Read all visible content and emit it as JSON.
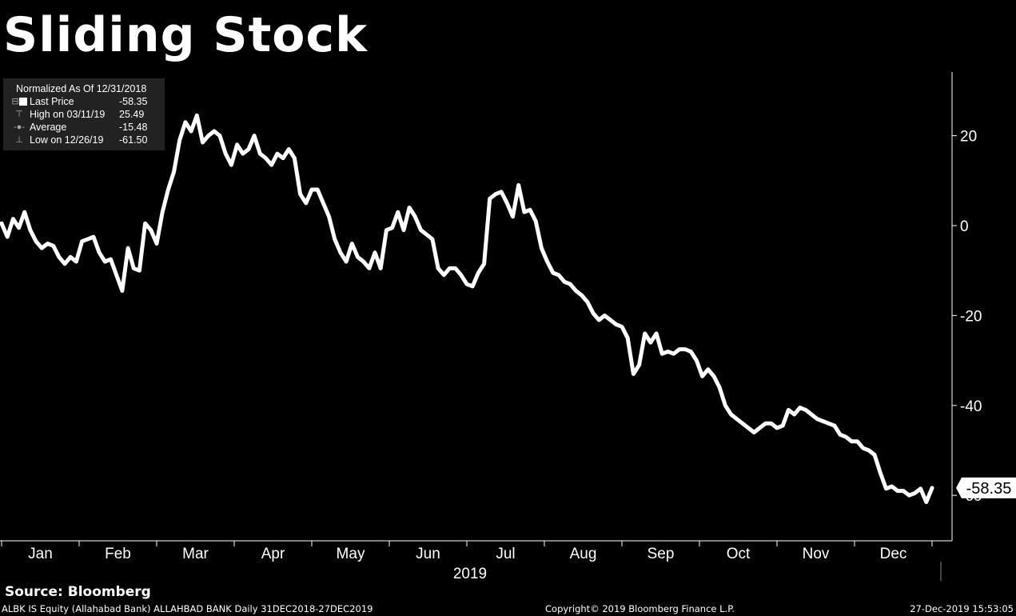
{
  "title": "Sliding Stock",
  "legend": {
    "header": "Normalized As Of 12/31/2018",
    "rows": [
      {
        "label": "Last Price",
        "value": "-58.35"
      },
      {
        "label": "High on 03/11/19",
        "value": "25.49"
      },
      {
        "label": "Average",
        "value": "-15.48"
      },
      {
        "label": "Low on 12/26/19",
        "value": "-61.50"
      }
    ]
  },
  "chart_data": {
    "type": "line",
    "title": "Sliding Stock",
    "xlabel": "2019",
    "ylabel": "",
    "x_ticks": [
      "Jan",
      "Feb",
      "Mar",
      "Apr",
      "May",
      "Jun",
      "Jul",
      "Aug",
      "Sep",
      "Oct",
      "Nov",
      "Dec"
    ],
    "y_ticks": [
      20,
      0,
      -20,
      -40,
      -60
    ],
    "ylim": [
      -70,
      34
    ],
    "last_value_label": "-58.35",
    "colors": {
      "line": "#ffffff",
      "background": "#000000"
    },
    "series": [
      {
        "values": [
          0.5,
          -2.5,
          1.5,
          -0.5,
          3,
          -1,
          -3.5,
          -5,
          -4,
          -4.5,
          -7,
          -8.5,
          -7,
          -8,
          -3.5,
          -3,
          -2.5,
          -6,
          -8,
          -7.5,
          -11,
          -14.5,
          -5,
          -9.5,
          -10,
          0.5,
          -1,
          -4,
          3,
          8,
          12,
          19,
          23,
          21,
          24.5,
          18.5,
          20,
          21,
          20,
          16,
          13.5,
          18,
          16,
          17,
          20,
          16,
          15,
          13.5,
          16,
          15,
          17,
          15,
          7,
          5,
          8,
          8,
          5,
          2,
          -3,
          -6,
          -8,
          -4,
          -7,
          -8,
          -9.5,
          -6,
          -9.5,
          -1,
          -0.5,
          3,
          -1,
          4,
          2,
          -1,
          -2,
          -3,
          -9.5,
          -11,
          -9.5,
          -9.5,
          -11,
          -13,
          -13.5,
          -10.5,
          -8.5,
          6,
          7,
          7.5,
          5,
          2,
          9,
          3,
          3.5,
          1,
          -5,
          -8,
          -10.5,
          -11,
          -12.5,
          -13,
          -14.5,
          -15.5,
          -17,
          -19.5,
          -21,
          -20,
          -21,
          -22,
          -22.5,
          -25,
          -33,
          -31,
          -24,
          -26,
          -24,
          -28.5,
          -28,
          -28.5,
          -27.5,
          -27.5,
          -28,
          -30,
          -33.5,
          -32,
          -33.5,
          -36,
          -40,
          -42,
          -43,
          -44,
          -45,
          -46,
          -45,
          -44,
          -44,
          -45,
          -44.5,
          -41,
          -42,
          -40.5,
          -41,
          -42,
          -43,
          -43.5,
          -44,
          -44.5,
          -46.5,
          -47,
          -48,
          -48,
          -49.5,
          -50,
          -51,
          -55,
          -58.5,
          -58,
          -59,
          -59,
          -60,
          -59.5,
          -58.5,
          -61.5,
          -58.35
        ]
      }
    ]
  },
  "source": "Source: Bloomberg",
  "footer": {
    "left": "ALBK IS Equity (Allahabad Bank) ALLAHBAD BANK  Daily 31DEC2018-27DEC2019",
    "center": "Copyright© 2019 Bloomberg Finance L.P.",
    "right": "27-Dec-2019 15:53:05"
  }
}
